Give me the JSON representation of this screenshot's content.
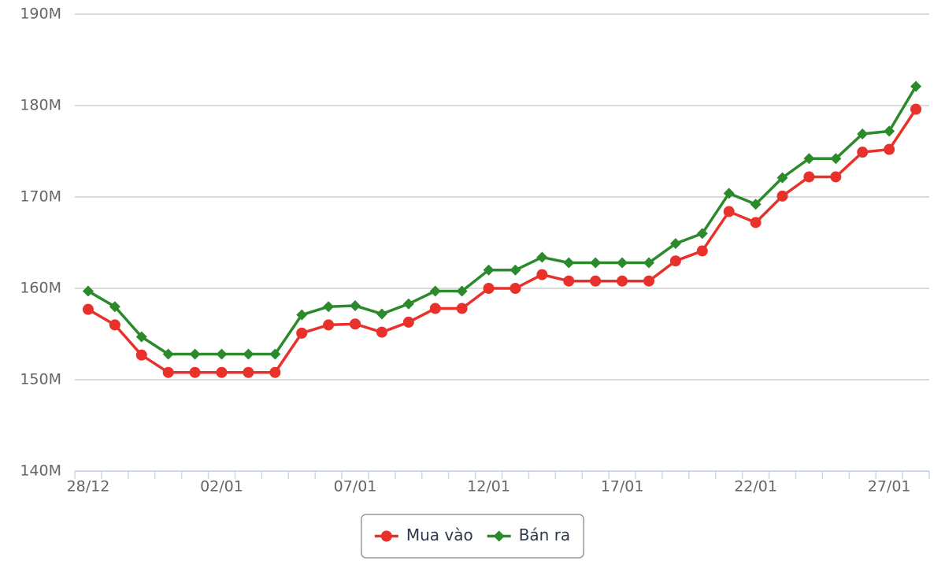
{
  "chart_data": {
    "type": "line",
    "categories": [
      "28/12",
      null,
      null,
      null,
      null,
      "02/01",
      null,
      null,
      null,
      null,
      "07/01",
      null,
      null,
      null,
      null,
      "12/01",
      null,
      null,
      null,
      null,
      "17/01",
      null,
      null,
      null,
      null,
      "22/01",
      null,
      null,
      null,
      null,
      "27/01",
      null
    ],
    "series": [
      {
        "name": "Mua vào",
        "color": "#e8312b",
        "marker": "circle",
        "values": [
          157.7,
          156.0,
          152.7,
          150.8,
          150.8,
          150.8,
          150.8,
          150.8,
          155.1,
          156.0,
          156.1,
          155.2,
          156.3,
          157.8,
          157.8,
          160.0,
          160.0,
          161.5,
          160.8,
          160.8,
          160.8,
          160.8,
          163.0,
          164.1,
          168.4,
          167.2,
          170.1,
          172.2,
          172.2,
          174.9,
          175.2,
          179.6
        ]
      },
      {
        "name": "Bán ra",
        "color": "#2b8a2b",
        "marker": "diamond",
        "values": [
          159.7,
          158.0,
          154.7,
          152.8,
          152.8,
          152.8,
          152.8,
          152.8,
          157.1,
          158.0,
          158.1,
          157.2,
          158.3,
          159.7,
          159.7,
          162.0,
          162.0,
          163.4,
          162.8,
          162.8,
          162.8,
          162.8,
          164.9,
          166.0,
          170.4,
          169.2,
          172.1,
          174.2,
          174.2,
          176.9,
          177.2,
          182.1
        ]
      }
    ],
    "ylim": [
      140,
      190
    ],
    "yticks": [
      {
        "value": 140,
        "label": "140M"
      },
      {
        "value": 150,
        "label": "150M"
      },
      {
        "value": 160,
        "label": "160M"
      },
      {
        "value": 170,
        "label": "170M"
      },
      {
        "value": 180,
        "label": "180M"
      },
      {
        "value": 190,
        "label": "190M"
      }
    ],
    "grid": true,
    "legend": "bottom"
  }
}
